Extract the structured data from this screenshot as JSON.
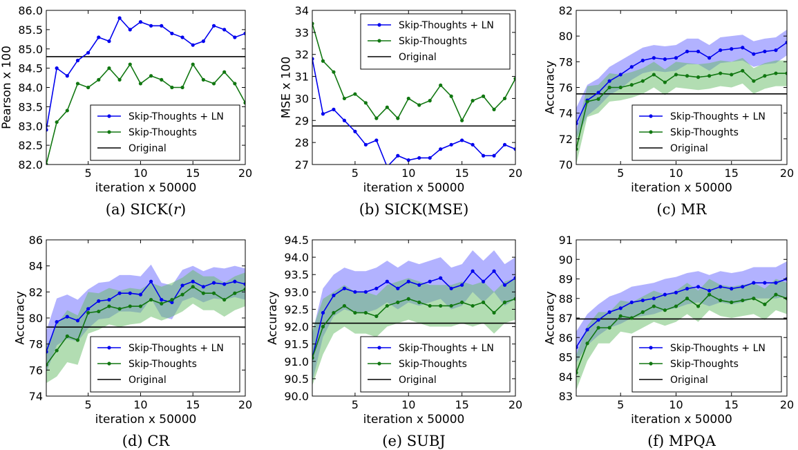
{
  "colors": {
    "ln": "#0000ee",
    "base": "#117711",
    "original": "#000000",
    "band_ln": "#6666ff",
    "band_base": "#66bb66"
  },
  "chart_data": [
    {
      "id": "a",
      "type": "line",
      "caption": {
        "prefix": "(a)",
        "text": "SICK(",
        "italic": "r",
        "suffix": ")"
      },
      "xlabel": "iteration x 50000",
      "ylabel": "Pearson x 100",
      "xlim": [
        1,
        20
      ],
      "ylim": [
        82.0,
        86.0
      ],
      "xticks": [
        5,
        10,
        15,
        20
      ],
      "yticks": [
        "82.0",
        "82.5",
        "83.0",
        "83.5",
        "84.0",
        "84.5",
        "85.0",
        "85.5",
        "86.0"
      ],
      "x": [
        1,
        2,
        3,
        4,
        5,
        6,
        7,
        8,
        9,
        10,
        11,
        12,
        13,
        14,
        15,
        16,
        17,
        18,
        19,
        20
      ],
      "series": [
        {
          "name": "Skip-Thoughts + LN",
          "values": [
            82.9,
            84.5,
            84.3,
            84.7,
            84.9,
            85.3,
            85.2,
            85.8,
            85.5,
            85.7,
            85.6,
            85.6,
            85.4,
            85.3,
            85.1,
            85.2,
            85.6,
            85.5,
            85.3,
            85.4
          ]
        },
        {
          "name": "Skip-Thoughts",
          "values": [
            82.0,
            83.1,
            83.4,
            84.1,
            84.0,
            84.2,
            84.5,
            84.2,
            84.6,
            84.1,
            84.3,
            84.2,
            84.0,
            84.0,
            84.6,
            84.2,
            84.1,
            84.4,
            84.1,
            83.6
          ]
        }
      ],
      "original": {
        "name": "Original",
        "value": 84.8
      },
      "legend": "lower-right"
    },
    {
      "id": "b",
      "type": "line",
      "caption": {
        "prefix": "(b)",
        "text": "SICK(MSE)"
      },
      "xlabel": "iteration x 50000",
      "ylabel": "MSE x 100",
      "xlim": [
        1,
        20
      ],
      "ylim": [
        27,
        34
      ],
      "xticks": [
        5,
        10,
        15,
        20
      ],
      "yticks": [
        "27",
        "28",
        "29",
        "30",
        "31",
        "32",
        "33",
        "34"
      ],
      "x": [
        1,
        2,
        3,
        4,
        5,
        6,
        7,
        8,
        9,
        10,
        11,
        12,
        13,
        14,
        15,
        16,
        17,
        18,
        19,
        20
      ],
      "series": [
        {
          "name": "Skip-Thoughts + LN",
          "values": [
            31.8,
            29.3,
            29.5,
            29.0,
            28.5,
            27.9,
            28.1,
            26.9,
            27.4,
            27.2,
            27.3,
            27.3,
            27.7,
            27.9,
            28.1,
            27.9,
            27.4,
            27.4,
            27.9,
            27.7
          ]
        },
        {
          "name": "Skip-Thoughts",
          "values": [
            33.4,
            31.7,
            31.2,
            30.0,
            30.2,
            29.8,
            29.1,
            29.6,
            29.1,
            30.0,
            29.7,
            29.9,
            30.6,
            30.1,
            29.0,
            29.9,
            30.1,
            29.5,
            30.0,
            30.9
          ]
        }
      ],
      "original": {
        "name": "Original",
        "value": 28.75
      },
      "legend": "upper-right"
    },
    {
      "id": "c",
      "type": "line",
      "caption": {
        "prefix": "(c)",
        "text": "MR"
      },
      "xlabel": "iteration x 50000",
      "ylabel": "Accuracy",
      "xlim": [
        1,
        20
      ],
      "ylim": [
        70,
        82
      ],
      "xticks": [
        5,
        10,
        15,
        20
      ],
      "yticks": [
        "70",
        "72",
        "74",
        "76",
        "78",
        "80",
        "82"
      ],
      "x": [
        1,
        2,
        3,
        4,
        5,
        6,
        7,
        8,
        9,
        10,
        11,
        12,
        13,
        14,
        15,
        16,
        17,
        18,
        19,
        20
      ],
      "series": [
        {
          "name": "Skip-Thoughts + LN",
          "values": [
            73.2,
            75.0,
            75.6,
            76.5,
            77.0,
            77.6,
            78.1,
            78.3,
            78.2,
            78.3,
            78.8,
            78.8,
            78.3,
            78.9,
            79.0,
            79.1,
            78.6,
            78.8,
            78.9,
            79.5
          ],
          "band": [
            1.2,
            1.2,
            1.1,
            1.1,
            1.1,
            1.0,
            1.0,
            1.0,
            1.0,
            1.0,
            1.0,
            1.0,
            1.0,
            1.0,
            1.0,
            1.0,
            1.0,
            1.0,
            1.0,
            1.0
          ]
        },
        {
          "name": "Skip-Thoughts",
          "values": [
            71.2,
            74.9,
            75.1,
            76.0,
            76.0,
            76.2,
            76.5,
            77.0,
            76.4,
            77.0,
            76.9,
            76.8,
            76.9,
            77.1,
            77.0,
            77.3,
            76.5,
            76.9,
            77.1,
            77.1
          ],
          "band": [
            1.2,
            1.2,
            1.1,
            1.1,
            1.0,
            1.0,
            1.0,
            1.0,
            1.0,
            1.0,
            1.0,
            1.0,
            1.0,
            1.0,
            1.0,
            1.0,
            1.0,
            1.0,
            1.0,
            1.0
          ]
        }
      ],
      "original": {
        "name": "Original",
        "value": 75.5
      },
      "legend": "lower-right"
    },
    {
      "id": "d",
      "type": "line",
      "caption": {
        "prefix": "(d)",
        "text": "CR"
      },
      "xlabel": "iteration x 50000",
      "ylabel": "Accuracy",
      "xlim": [
        1,
        20
      ],
      "ylim": [
        74,
        86
      ],
      "xticks": [
        5,
        10,
        15,
        20
      ],
      "yticks": [
        "74",
        "76",
        "78",
        "80",
        "82",
        "84",
        "86"
      ],
      "x": [
        1,
        2,
        3,
        4,
        5,
        6,
        7,
        8,
        9,
        10,
        11,
        12,
        13,
        14,
        15,
        16,
        17,
        18,
        19,
        20
      ],
      "series": [
        {
          "name": "Skip-Thoughts + LN",
          "values": [
            77.4,
            79.7,
            80.1,
            79.8,
            80.7,
            81.3,
            81.4,
            81.9,
            81.9,
            81.8,
            82.8,
            81.4,
            81.2,
            82.5,
            82.8,
            82.4,
            82.7,
            82.6,
            82.8,
            82.6
          ],
          "band": [
            1.6,
            1.8,
            1.7,
            1.6,
            1.5,
            1.4,
            1.4,
            1.4,
            1.4,
            1.4,
            1.3,
            1.3,
            1.3,
            1.2,
            1.2,
            1.2,
            1.2,
            1.2,
            1.2,
            1.2
          ]
        },
        {
          "name": "Skip-Thoughts",
          "values": [
            76.4,
            77.5,
            78.6,
            78.3,
            80.4,
            80.5,
            80.9,
            80.7,
            80.9,
            80.9,
            81.4,
            81.1,
            81.4,
            81.8,
            82.4,
            81.9,
            81.9,
            81.4,
            81.9,
            82.2
          ],
          "band": [
            1.4,
            2.0,
            2.0,
            1.9,
            1.6,
            1.4,
            1.4,
            1.4,
            1.4,
            1.3,
            1.3,
            1.3,
            1.3,
            1.3,
            1.3,
            1.3,
            1.3,
            1.3,
            1.3,
            1.3
          ]
        }
      ],
      "original": {
        "name": "Original",
        "value": 79.3
      },
      "legend": "lower-right"
    },
    {
      "id": "e",
      "type": "line",
      "caption": {
        "prefix": "(e)",
        "text": "SUBJ"
      },
      "xlabel": "iteration x 50000",
      "ylabel": "Accuracy",
      "xlim": [
        1,
        20
      ],
      "ylim": [
        90.0,
        94.5
      ],
      "xticks": [
        5,
        10,
        15,
        20
      ],
      "yticks": [
        "90.0",
        "90.5",
        "91.0",
        "91.5",
        "92.0",
        "92.5",
        "93.0",
        "93.5",
        "94.0",
        "94.5"
      ],
      "x": [
        1,
        2,
        3,
        4,
        5,
        6,
        7,
        8,
        9,
        10,
        11,
        12,
        13,
        14,
        15,
        16,
        17,
        18,
        19,
        20
      ],
      "series": [
        {
          "name": "Skip-Thoughts + LN",
          "values": [
            91.1,
            92.4,
            92.9,
            93.1,
            93.0,
            93.0,
            93.1,
            93.3,
            93.1,
            93.3,
            93.2,
            93.3,
            93.4,
            93.1,
            93.2,
            93.6,
            93.3,
            93.6,
            93.2,
            93.4
          ],
          "band": [
            0.7,
            0.7,
            0.6,
            0.6,
            0.6,
            0.6,
            0.6,
            0.6,
            0.6,
            0.6,
            0.6,
            0.6,
            0.6,
            0.6,
            0.6,
            0.6,
            0.6,
            0.6,
            0.6,
            0.6
          ]
        },
        {
          "name": "Skip-Thoughts",
          "values": [
            91.1,
            92.0,
            92.4,
            92.6,
            92.4,
            92.4,
            92.3,
            92.6,
            92.7,
            92.8,
            92.7,
            92.6,
            92.6,
            92.6,
            92.7,
            92.6,
            92.7,
            92.4,
            92.7,
            92.8
          ],
          "band": [
            0.8,
            0.8,
            0.6,
            0.6,
            0.6,
            0.6,
            0.6,
            0.6,
            0.6,
            0.6,
            0.6,
            0.6,
            0.6,
            0.6,
            0.6,
            0.6,
            0.6,
            0.6,
            0.6,
            0.6
          ]
        }
      ],
      "original": {
        "name": "Original",
        "value": 92.1
      },
      "legend": "lower-right"
    },
    {
      "id": "f",
      "type": "line",
      "caption": {
        "prefix": "(f)",
        "text": "MPQA"
      },
      "xlabel": "iteration x 50000",
      "ylabel": "Accuracy",
      "xlim": [
        1,
        20
      ],
      "ylim": [
        83,
        91
      ],
      "xticks": [
        5,
        10,
        15,
        20
      ],
      "yticks": [
        "83",
        "84",
        "85",
        "86",
        "87",
        "88",
        "89",
        "90",
        "91"
      ],
      "x": [
        1,
        2,
        3,
        4,
        5,
        6,
        7,
        8,
        9,
        10,
        11,
        12,
        13,
        14,
        15,
        16,
        17,
        18,
        19,
        20
      ],
      "series": [
        {
          "name": "Skip-Thoughts + LN",
          "values": [
            85.5,
            86.4,
            86.9,
            87.3,
            87.5,
            87.8,
            87.9,
            88.0,
            88.2,
            88.3,
            88.5,
            88.6,
            88.4,
            88.6,
            88.5,
            88.6,
            88.8,
            88.8,
            88.8,
            89.0
          ],
          "band": [
            0.8,
            0.8,
            0.8,
            0.8,
            0.8,
            0.8,
            0.8,
            0.8,
            0.8,
            0.8,
            0.8,
            0.8,
            0.8,
            0.8,
            0.8,
            0.8,
            0.8,
            0.8,
            0.8,
            0.9
          ]
        },
        {
          "name": "Skip-Thoughts",
          "values": [
            84.2,
            85.7,
            86.5,
            86.5,
            87.1,
            87.0,
            87.3,
            87.6,
            87.4,
            87.6,
            88.0,
            87.6,
            88.2,
            87.9,
            87.8,
            87.9,
            88.0,
            87.7,
            88.2,
            88.0
          ],
          "band": [
            0.9,
            0.9,
            0.8,
            0.8,
            0.8,
            0.8,
            0.8,
            0.8,
            0.8,
            0.8,
            0.8,
            0.8,
            0.8,
            0.8,
            0.8,
            0.8,
            0.8,
            0.8,
            0.8,
            0.8
          ]
        }
      ],
      "original": {
        "name": "Original",
        "value": 86.95
      },
      "legend": "lower-right"
    }
  ]
}
